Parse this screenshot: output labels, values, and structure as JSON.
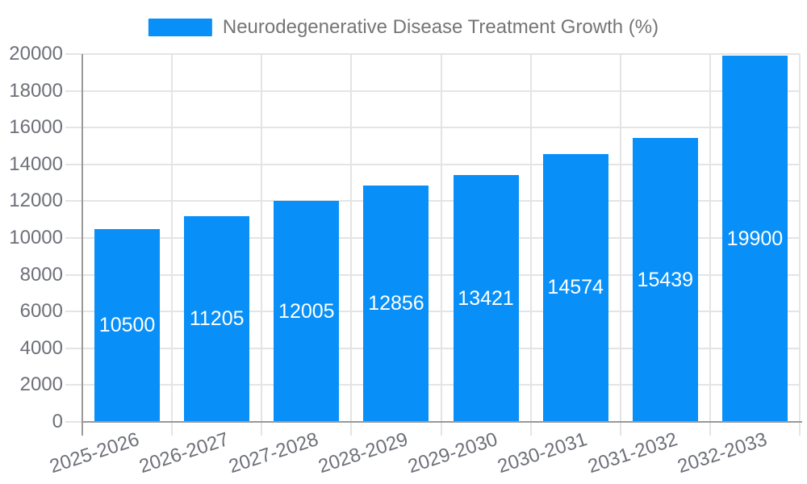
{
  "chart_data": {
    "type": "bar",
    "title": "Neurodegenerative Disease Treatment Growth (%)",
    "legend": {
      "label": "Neurodegenerative Disease Treatment Growth (%)",
      "position": "top"
    },
    "categories": [
      "2025-2026",
      "2026-2027",
      "2027-2028",
      "2028-2029",
      "2029-2030",
      "2030-2031",
      "2031-2032",
      "2032-2033"
    ],
    "values": [
      10500,
      11205,
      12005,
      12856,
      13421,
      14574,
      15439,
      19900
    ],
    "bar_labels": [
      "10500",
      "11205",
      "12005",
      "12856",
      "13421",
      "14574",
      "15439",
      "19900"
    ],
    "xlabel": "",
    "ylabel": "",
    "ylim": [
      0,
      20000
    ],
    "yticks": [
      0,
      2000,
      4000,
      6000,
      8000,
      10000,
      12000,
      14000,
      16000,
      18000,
      20000
    ],
    "grid": true,
    "x_label_rotation_deg": -18
  },
  "colors": {
    "bar": "#0890f8",
    "grid": "#e4e4e4",
    "axis_line": "#999999",
    "axis_label": "#6e7079",
    "legend_text": "#757575",
    "bar_value_text": "#ffffff",
    "background": "#ffffff"
  }
}
